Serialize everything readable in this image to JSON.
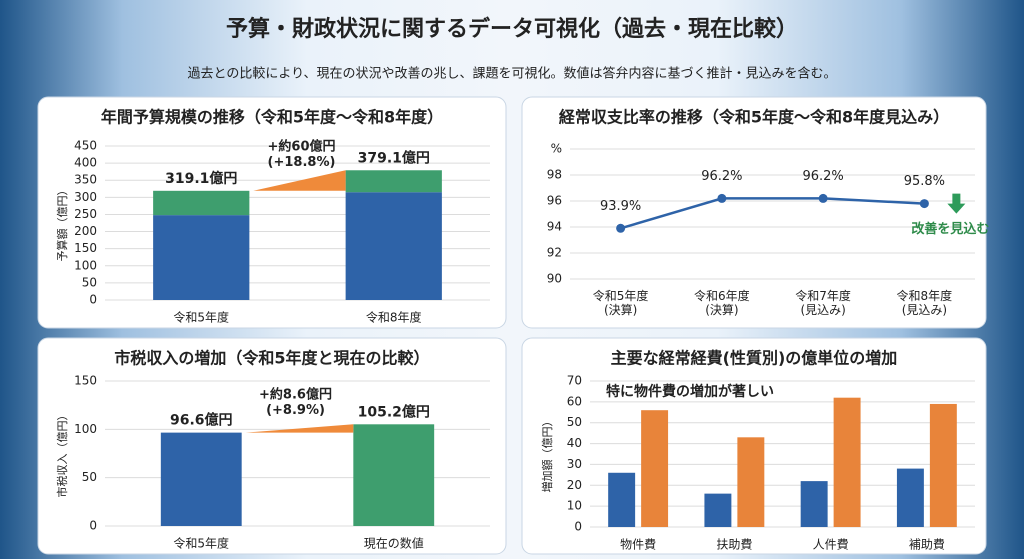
{
  "header": {
    "title": "予算・財政状況に関するデータ可視化（過去・現在比較）",
    "subtitle": "過去との比較により、現在の状況や改善の兆し、課題を可視化。数値は答弁内容に基づく推計・見込みを含む。"
  },
  "chart_data": [
    {
      "type": "bar",
      "stacked": true,
      "title": "年間予算規模の推移（令和5年度〜令和8年度）",
      "y_label": "予算額（億円）",
      "categories": [
        "令和5年度",
        "令和8年度"
      ],
      "series": [
        {
          "color": "#2e63a8",
          "values": [
            248,
            315
          ]
        },
        {
          "color": "#3e9e6e",
          "values": [
            71.1,
            64.1
          ]
        }
      ],
      "totals": [
        319.1,
        379.1
      ],
      "total_labels": [
        "319.1億円",
        "379.1億円"
      ],
      "annotation": "+約60億円\n(+18.8%)",
      "ylim": [
        0,
        450
      ],
      "yticks": [
        0,
        50,
        100,
        150,
        200,
        250,
        300,
        350,
        400,
        450
      ],
      "grid": true
    },
    {
      "type": "line",
      "title": "経常収支比率の推移（令和5年度〜令和8年度見込み）",
      "categories": [
        "令和5年度\n(決算)",
        "令和6年度\n(決算)",
        "令和7年度\n(見込み)",
        "令和8年度\n(見込み)"
      ],
      "values": [
        93.9,
        96.2,
        96.2,
        95.8
      ],
      "value_labels": [
        "93.9%",
        "96.2%",
        "96.2%",
        "95.8%"
      ],
      "color": "#2e63a8",
      "annotation": "改善を見込む",
      "ylim": [
        90,
        100
      ],
      "yticks": [
        90,
        92,
        94,
        96,
        98,
        {
          "value": 100,
          "label": "%"
        }
      ],
      "grid": true
    },
    {
      "type": "bar",
      "title": "市税収入の増加（令和5年度と現在の比較）",
      "y_label": "市税収入（億円）",
      "categories": [
        "令和5年度",
        "現在の数値"
      ],
      "values": [
        96.6,
        105.2
      ],
      "value_labels": [
        "96.6億円",
        "105.2億円"
      ],
      "colors": [
        "#2e63a8",
        "#3e9e6e"
      ],
      "annotation": "+約8.6億円\n(+8.9%)",
      "ylim": [
        0,
        150
      ],
      "yticks": [
        0,
        50,
        100,
        150
      ],
      "grid": true
    },
    {
      "type": "bar",
      "title": "主要な経常経費(性質別)の億単位の増加",
      "y_label": "増加額（億円）",
      "categories": [
        "物件費",
        "扶助費",
        "人件費",
        "補助費"
      ],
      "series": [
        {
          "color": "#2e63a8",
          "values": [
            26,
            16,
            22,
            28
          ]
        },
        {
          "color": "#e8843a",
          "values": [
            56,
            43,
            62,
            59
          ]
        }
      ],
      "annotation": "特に物件費の増加が著しい",
      "ylim": [
        0,
        70
      ],
      "yticks": [
        0,
        10,
        20,
        30,
        40,
        50,
        60,
        70
      ],
      "grid": true
    }
  ]
}
